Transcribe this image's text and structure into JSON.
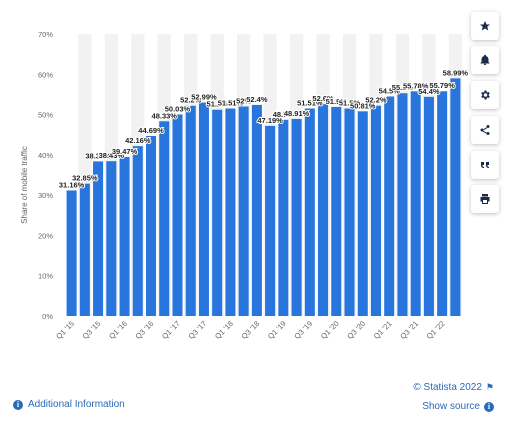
{
  "chart_data": {
    "type": "bar",
    "ylabel": "Share of mobile traffic",
    "ylim": [
      0,
      70
    ],
    "yticks": [
      "0%",
      "10%",
      "20%",
      "30%",
      "40%",
      "50%",
      "60%",
      "70%"
    ],
    "categories": [
      "Q1 '15",
      "Q2 '15",
      "Q3 '15",
      "Q4 '15",
      "Q1 '16",
      "Q2 '16",
      "Q3 '16",
      "Q4 '16",
      "Q1 '17",
      "Q2 '17",
      "Q3 '17",
      "Q4 '17",
      "Q1 '18",
      "Q2 '18",
      "Q3 '18",
      "Q4 '18",
      "Q1 '19",
      "Q2 '19",
      "Q3 '19",
      "Q4 '19",
      "Q1 '20",
      "Q2 '20",
      "Q3 '20",
      "Q4 '20",
      "Q1 '21",
      "Q2 '21",
      "Q3 '21",
      "Q4 '21",
      "Q1 '22",
      "Q2 '22"
    ],
    "xtick_labels": [
      "Q1 '15",
      "",
      "Q3 '15",
      "",
      "Q1 '16",
      "",
      "Q3 '16",
      "",
      "Q1 '17",
      "",
      "Q3 '17",
      "",
      "Q1 '18",
      "",
      "Q3 '18",
      "",
      "Q1 '19",
      "",
      "Q3 '19",
      "",
      "Q1 '20",
      "",
      "Q3 '20",
      "",
      "Q1 '21",
      "",
      "Q3 '21",
      "",
      "Q1 '22",
      ""
    ],
    "values": [
      31.16,
      32.85,
      38.38,
      38.43,
      39.47,
      42.16,
      44.69,
      48.33,
      50.03,
      52.2,
      52.99,
      51.2,
      51.51,
      52.0,
      52.4,
      47.19,
      48.7,
      48.91,
      51.51,
      52.6,
      51.9,
      51.5,
      50.81,
      52.2,
      54.5,
      55.3,
      55.78,
      54.4,
      55.79,
      58.99
    ],
    "labels": [
      "31.16%",
      "32.85%",
      "38.38%",
      "38.43%",
      "39.47%",
      "42.16%",
      "44.69%",
      "48.33%",
      "50.03%",
      "52.2%",
      "52.99%",
      "51.2%",
      "51.51%",
      "52%",
      "52.4%",
      "47.19%",
      "48.7%",
      "48.91%",
      "51.51%",
      "52.6%",
      "51.9%",
      "51.5%",
      "50.81%",
      "52.2%",
      "54.5%",
      "55.3%",
      "55.78%",
      "54.4%",
      "55.79%",
      "58.99%"
    ],
    "bar_color": "#2876dd",
    "grid_band_color": "#f2f2f2"
  },
  "sidebar": [
    {
      "name": "star-icon"
    },
    {
      "name": "bell-icon"
    },
    {
      "name": "gear-icon"
    },
    {
      "name": "share-icon"
    },
    {
      "name": "quote-icon"
    },
    {
      "name": "print-icon"
    }
  ],
  "footer": {
    "additional_info": "Additional Information",
    "copyright": "© Statista 2022",
    "show_source": "Show source"
  }
}
